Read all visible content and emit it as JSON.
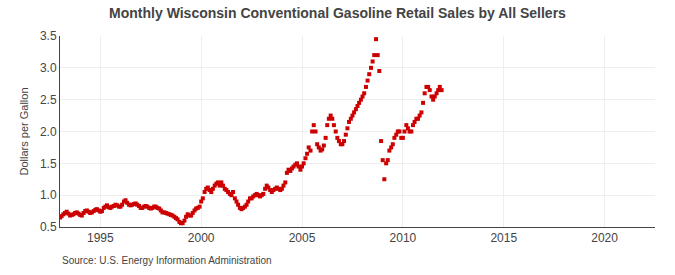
{
  "chart_data": {
    "type": "scatter",
    "title": "Monthly Wisconsin Conventional Gasoline Retail Sales by All Sellers",
    "ylabel": "Dollars per Gallon",
    "annotations": [
      "Source: U.S. Energy Information Administration"
    ],
    "color": "#cc0000",
    "marker": "square",
    "grid": true,
    "xlim": [
      1993.0,
      2022.5
    ],
    "ylim": [
      0.5,
      3.5
    ],
    "xticks": [
      1995,
      2000,
      2005,
      2010,
      2015,
      2020
    ],
    "yticks": [
      0.5,
      {
        "value": 1.0,
        "label": "1.0"
      },
      1.5,
      {
        "value": 2.0,
        "label": "2.0"
      },
      2.5,
      {
        "value": 3.0,
        "label": "3.0"
      },
      3.5
    ],
    "x": [
      1993.0,
      1993.08,
      1993.17,
      1993.25,
      1993.33,
      1993.42,
      1993.5,
      1993.58,
      1993.67,
      1993.75,
      1993.83,
      1993.92,
      1994.0,
      1994.08,
      1994.17,
      1994.25,
      1994.33,
      1994.42,
      1994.5,
      1994.58,
      1994.67,
      1994.75,
      1994.83,
      1994.92,
      1995.0,
      1995.08,
      1995.17,
      1995.25,
      1995.33,
      1995.42,
      1995.5,
      1995.58,
      1995.67,
      1995.75,
      1995.83,
      1995.92,
      1996.0,
      1996.08,
      1996.17,
      1996.25,
      1996.33,
      1996.42,
      1996.5,
      1996.58,
      1996.67,
      1996.75,
      1996.83,
      1996.92,
      1997.0,
      1997.08,
      1997.17,
      1997.25,
      1997.33,
      1997.42,
      1997.5,
      1997.58,
      1997.67,
      1997.75,
      1997.83,
      1997.92,
      1998.0,
      1998.08,
      1998.17,
      1998.25,
      1998.33,
      1998.42,
      1998.5,
      1998.58,
      1998.67,
      1998.75,
      1998.83,
      1998.92,
      1999.0,
      1999.08,
      1999.17,
      1999.25,
      1999.33,
      1999.42,
      1999.5,
      1999.58,
      1999.67,
      1999.75,
      1999.83,
      1999.92,
      2000.0,
      2000.08,
      2000.17,
      2000.25,
      2000.33,
      2000.42,
      2000.5,
      2000.58,
      2000.67,
      2000.75,
      2000.83,
      2000.92,
      2001.0,
      2001.08,
      2001.17,
      2001.25,
      2001.33,
      2001.42,
      2001.5,
      2001.58,
      2001.67,
      2001.75,
      2001.83,
      2001.92,
      2002.0,
      2002.08,
      2002.17,
      2002.25,
      2002.33,
      2002.42,
      2002.5,
      2002.58,
      2002.67,
      2002.75,
      2002.83,
      2002.92,
      2003.0,
      2003.08,
      2003.17,
      2003.25,
      2003.33,
      2003.42,
      2003.5,
      2003.58,
      2003.67,
      2003.75,
      2003.83,
      2003.92,
      2004.0,
      2004.08,
      2004.17,
      2004.25,
      2004.33,
      2004.42,
      2004.5,
      2004.58,
      2004.67,
      2004.75,
      2004.83,
      2004.92,
      2005.0,
      2005.08,
      2005.17,
      2005.25,
      2005.33,
      2005.42,
      2005.5,
      2005.58,
      2005.67,
      2005.75,
      2005.83,
      2005.92,
      2006.0,
      2006.08,
      2006.17,
      2006.25,
      2006.33,
      2006.42,
      2006.5,
      2006.58,
      2006.67,
      2006.75,
      2006.83,
      2006.92,
      2007.0,
      2007.08,
      2007.17,
      2007.25,
      2007.33,
      2007.42,
      2007.5,
      2007.58,
      2007.67,
      2007.75,
      2007.83,
      2007.92,
      2008.0,
      2008.08,
      2008.17,
      2008.25,
      2008.33,
      2008.42,
      2008.5,
      2008.58,
      2008.67,
      2008.75,
      2008.83,
      2008.92,
      2009.0,
      2009.08,
      2009.17,
      2009.25,
      2009.33,
      2009.42,
      2009.5,
      2009.58,
      2009.67,
      2009.75,
      2009.83,
      2009.92,
      2010.0,
      2010.08,
      2010.17,
      2010.25,
      2010.33,
      2010.42,
      2010.5,
      2010.58,
      2010.67,
      2010.75,
      2010.83,
      2010.92,
      2011.0,
      2011.08,
      2011.17,
      2011.25,
      2011.33,
      2011.42,
      2011.5,
      2011.58,
      2011.67,
      2011.75,
      2011.83,
      2011.92
    ],
    "values": [
      0.65,
      0.67,
      0.7,
      0.72,
      0.74,
      0.71,
      0.68,
      0.69,
      0.7,
      0.72,
      0.73,
      0.71,
      0.69,
      0.68,
      0.72,
      0.75,
      0.76,
      0.74,
      0.72,
      0.73,
      0.75,
      0.77,
      0.78,
      0.76,
      0.74,
      0.75,
      0.8,
      0.82,
      0.84,
      0.81,
      0.8,
      0.82,
      0.83,
      0.85,
      0.84,
      0.82,
      0.82,
      0.85,
      0.9,
      0.92,
      0.88,
      0.85,
      0.84,
      0.85,
      0.86,
      0.87,
      0.85,
      0.83,
      0.8,
      0.8,
      0.82,
      0.83,
      0.82,
      0.8,
      0.79,
      0.8,
      0.82,
      0.82,
      0.8,
      0.79,
      0.76,
      0.73,
      0.73,
      0.72,
      0.71,
      0.7,
      0.69,
      0.68,
      0.66,
      0.64,
      0.62,
      0.58,
      0.56,
      0.56,
      0.6,
      0.66,
      0.7,
      0.68,
      0.68,
      0.72,
      0.76,
      0.79,
      0.8,
      0.82,
      0.9,
      0.95,
      1.05,
      1.1,
      1.12,
      1.08,
      1.05,
      1.1,
      1.15,
      1.18,
      1.2,
      1.15,
      1.2,
      1.15,
      1.1,
      1.08,
      1.05,
      1.02,
      1.0,
      1.05,
      0.95,
      0.9,
      0.85,
      0.8,
      0.78,
      0.8,
      0.82,
      0.85,
      0.9,
      0.95,
      0.95,
      0.98,
      1.0,
      1.02,
      1.0,
      0.98,
      1.0,
      1.02,
      1.1,
      1.15,
      1.12,
      1.08,
      1.05,
      1.08,
      1.1,
      1.12,
      1.1,
      1.08,
      1.1,
      1.15,
      1.2,
      1.35,
      1.4,
      1.38,
      1.42,
      1.45,
      1.48,
      1.5,
      1.45,
      1.4,
      1.45,
      1.5,
      1.58,
      1.65,
      1.75,
      1.7,
      2.0,
      2.1,
      2.0,
      1.8,
      1.75,
      1.7,
      1.72,
      1.78,
      1.9,
      2.1,
      2.2,
      2.25,
      2.2,
      2.1,
      2.0,
      1.9,
      1.85,
      1.8,
      1.8,
      1.85,
      1.95,
      2.05,
      2.15,
      2.2,
      2.25,
      2.3,
      2.35,
      2.4,
      2.45,
      2.5,
      2.55,
      2.6,
      2.7,
      2.8,
      2.9,
      3.0,
      3.1,
      3.2,
      3.45,
      3.2,
      2.95,
      1.85,
      1.55,
      1.25,
      1.5,
      1.55,
      1.7,
      1.75,
      1.8,
      1.9,
      1.95,
      2.0,
      2.0,
      1.9,
      1.9,
      2.0,
      2.1,
      2.05,
      2.0,
      2.0,
      2.1,
      2.15,
      2.2,
      2.2,
      2.25,
      2.3,
      2.45,
      2.6,
      2.7,
      2.7,
      2.65,
      2.55,
      2.5,
      2.55,
      2.6,
      2.65,
      2.7,
      2.65
    ]
  }
}
